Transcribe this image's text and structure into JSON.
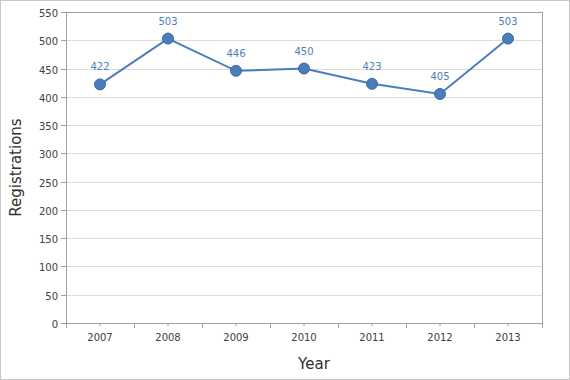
{
  "chart_data": {
    "type": "line",
    "x_label": "Year",
    "y_label": "Registrations",
    "categories": [
      "2007",
      "2008",
      "2009",
      "2010",
      "2011",
      "2012",
      "2013"
    ],
    "values": [
      422,
      503,
      446,
      450,
      423,
      405,
      503
    ],
    "color": "#4a7ebb",
    "marker": "circle",
    "ylim": [
      0,
      550
    ],
    "yticks": [
      0,
      50,
      100,
      150,
      200,
      250,
      300,
      350,
      400,
      450,
      500,
      550
    ],
    "grid": true,
    "data_labels": true
  }
}
